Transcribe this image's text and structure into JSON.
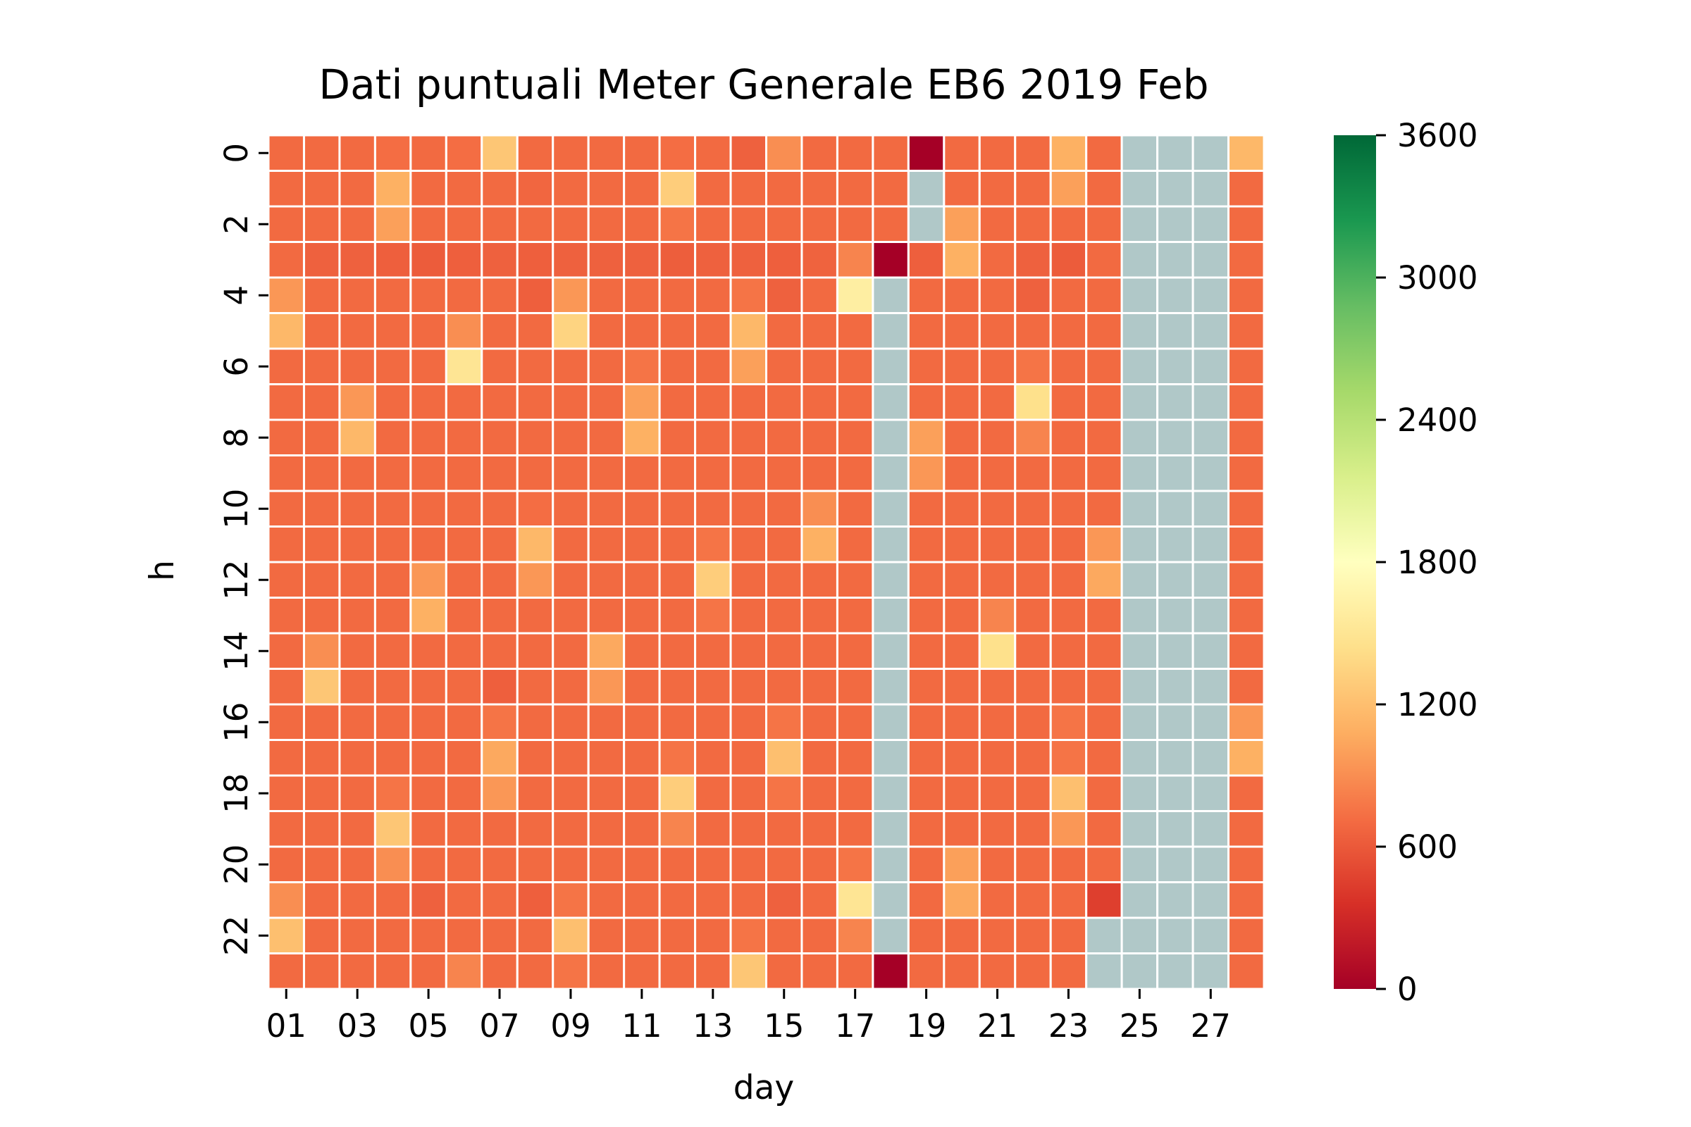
{
  "chart_data": {
    "type": "heatmap",
    "title": "Dati puntuali Meter Generale EB6 2019 Feb",
    "xlabel": "day",
    "ylabel": "h",
    "x": [
      "01",
      "02",
      "03",
      "04",
      "05",
      "06",
      "07",
      "08",
      "09",
      "10",
      "11",
      "12",
      "13",
      "14",
      "15",
      "16",
      "17",
      "18",
      "19",
      "20",
      "21",
      "22",
      "23",
      "24",
      "25",
      "26",
      "27",
      "28"
    ],
    "x_tick_labels": [
      "01",
      "03",
      "05",
      "07",
      "09",
      "11",
      "13",
      "15",
      "17",
      "19",
      "21",
      "23",
      "25",
      "27"
    ],
    "y": [
      0,
      1,
      2,
      3,
      4,
      5,
      6,
      7,
      8,
      9,
      10,
      11,
      12,
      13,
      14,
      15,
      16,
      17,
      18,
      19,
      20,
      21,
      22,
      23
    ],
    "y_tick_labels": [
      "0",
      "2",
      "4",
      "6",
      "8",
      "10",
      "12",
      "14",
      "16",
      "18",
      "20",
      "22"
    ],
    "colorbar": {
      "min": 0,
      "max": 3600,
      "ticks": [
        "0",
        "600",
        "1200",
        "1800",
        "2400",
        "3000",
        "3600"
      ],
      "colormap": "RdYlGn"
    },
    "missing_color": "#b0c8c8",
    "grid_color": "#ffffff",
    "values": [
      [
        700,
        700,
        700,
        720,
        700,
        720,
        1250,
        700,
        700,
        700,
        700,
        720,
        700,
        650,
        900,
        700,
        700,
        700,
        0,
        700,
        700,
        700,
        1100,
        700,
        null,
        null,
        null,
        1150
      ],
      [
        700,
        700,
        700,
        1100,
        700,
        700,
        700,
        680,
        700,
        700,
        700,
        1300,
        700,
        700,
        700,
        700,
        700,
        700,
        null,
        700,
        700,
        700,
        1000,
        700,
        null,
        null,
        null,
        700
      ],
      [
        700,
        700,
        700,
        1000,
        700,
        700,
        700,
        700,
        700,
        700,
        700,
        760,
        700,
        700,
        700,
        700,
        700,
        700,
        null,
        1000,
        700,
        700,
        700,
        700,
        null,
        null,
        null,
        700
      ],
      [
        700,
        650,
        650,
        640,
        620,
        640,
        650,
        640,
        650,
        650,
        650,
        630,
        650,
        650,
        640,
        660,
        850,
        0,
        640,
        1100,
        700,
        650,
        620,
        700,
        null,
        null,
        null,
        700
      ],
      [
        950,
        700,
        700,
        700,
        700,
        700,
        700,
        640,
        950,
        700,
        700,
        700,
        700,
        760,
        650,
        700,
        1600,
        null,
        700,
        700,
        700,
        650,
        700,
        700,
        null,
        null,
        null,
        700
      ],
      [
        1150,
        700,
        700,
        700,
        700,
        900,
        700,
        700,
        1350,
        700,
        700,
        700,
        700,
        1150,
        700,
        700,
        700,
        null,
        700,
        700,
        700,
        700,
        700,
        700,
        null,
        null,
        null,
        700
      ],
      [
        700,
        700,
        700,
        700,
        700,
        1500,
        700,
        700,
        700,
        700,
        760,
        700,
        700,
        1000,
        700,
        700,
        700,
        null,
        700,
        700,
        700,
        760,
        700,
        700,
        null,
        null,
        null,
        700
      ],
      [
        700,
        700,
        950,
        700,
        700,
        700,
        700,
        700,
        700,
        700,
        1000,
        700,
        700,
        700,
        700,
        700,
        700,
        null,
        700,
        700,
        700,
        1450,
        700,
        700,
        null,
        null,
        null,
        700
      ],
      [
        700,
        700,
        1150,
        700,
        700,
        700,
        700,
        700,
        700,
        700,
        1100,
        700,
        700,
        700,
        700,
        700,
        700,
        null,
        1000,
        700,
        700,
        850,
        700,
        700,
        null,
        null,
        null,
        700
      ],
      [
        700,
        700,
        700,
        700,
        700,
        700,
        700,
        700,
        700,
        700,
        700,
        700,
        700,
        700,
        700,
        700,
        700,
        null,
        950,
        700,
        700,
        700,
        700,
        700,
        null,
        null,
        null,
        700
      ],
      [
        700,
        700,
        700,
        700,
        700,
        700,
        700,
        720,
        700,
        700,
        700,
        700,
        700,
        700,
        700,
        900,
        700,
        null,
        700,
        700,
        700,
        700,
        700,
        700,
        null,
        null,
        null,
        700
      ],
      [
        700,
        700,
        700,
        700,
        700,
        700,
        700,
        1150,
        700,
        700,
        700,
        700,
        760,
        700,
        700,
        1100,
        700,
        null,
        700,
        700,
        700,
        700,
        700,
        950,
        null,
        null,
        null,
        700
      ],
      [
        700,
        700,
        700,
        700,
        950,
        700,
        700,
        950,
        700,
        700,
        700,
        700,
        1300,
        700,
        700,
        700,
        700,
        null,
        700,
        700,
        700,
        700,
        700,
        1050,
        null,
        null,
        null,
        700
      ],
      [
        700,
        700,
        700,
        700,
        1100,
        700,
        700,
        700,
        700,
        700,
        700,
        700,
        760,
        700,
        700,
        700,
        700,
        null,
        700,
        700,
        850,
        700,
        700,
        700,
        null,
        null,
        null,
        700
      ],
      [
        700,
        900,
        700,
        700,
        700,
        700,
        700,
        700,
        700,
        1050,
        700,
        700,
        700,
        700,
        700,
        700,
        700,
        null,
        700,
        700,
        1450,
        700,
        700,
        700,
        null,
        null,
        null,
        700
      ],
      [
        700,
        1250,
        700,
        700,
        700,
        700,
        640,
        700,
        700,
        950,
        700,
        700,
        700,
        700,
        700,
        700,
        700,
        null,
        700,
        700,
        700,
        700,
        700,
        700,
        null,
        null,
        null,
        700
      ],
      [
        700,
        700,
        700,
        700,
        700,
        700,
        760,
        700,
        700,
        700,
        700,
        700,
        700,
        700,
        760,
        700,
        700,
        null,
        700,
        700,
        700,
        700,
        760,
        700,
        null,
        null,
        null,
        950
      ],
      [
        700,
        700,
        700,
        700,
        700,
        700,
        1050,
        700,
        700,
        700,
        700,
        760,
        700,
        700,
        1200,
        700,
        700,
        null,
        700,
        700,
        700,
        700,
        760,
        700,
        null,
        null,
        null,
        1100
      ],
      [
        700,
        700,
        700,
        760,
        700,
        700,
        950,
        700,
        700,
        700,
        700,
        1300,
        700,
        700,
        760,
        700,
        700,
        null,
        700,
        700,
        700,
        700,
        1200,
        700,
        null,
        null,
        null,
        700
      ],
      [
        700,
        700,
        700,
        1250,
        700,
        700,
        700,
        700,
        700,
        700,
        700,
        850,
        700,
        700,
        700,
        700,
        700,
        null,
        700,
        700,
        700,
        700,
        950,
        700,
        null,
        null,
        null,
        700
      ],
      [
        700,
        700,
        700,
        900,
        700,
        700,
        700,
        700,
        700,
        700,
        700,
        700,
        700,
        700,
        700,
        700,
        760,
        null,
        700,
        1000,
        700,
        700,
        700,
        700,
        null,
        null,
        null,
        700
      ],
      [
        900,
        700,
        700,
        700,
        650,
        700,
        700,
        640,
        760,
        700,
        700,
        700,
        700,
        700,
        650,
        700,
        1500,
        null,
        700,
        1050,
        700,
        700,
        700,
        450,
        null,
        null,
        null,
        700
      ],
      [
        1200,
        700,
        700,
        700,
        700,
        700,
        700,
        700,
        1200,
        700,
        700,
        700,
        700,
        760,
        700,
        700,
        850,
        null,
        700,
        700,
        700,
        700,
        700,
        null,
        null,
        null,
        null,
        700
      ],
      [
        700,
        700,
        700,
        700,
        700,
        850,
        700,
        700,
        760,
        700,
        700,
        700,
        700,
        1250,
        700,
        700,
        700,
        0,
        700,
        700,
        700,
        700,
        700,
        null,
        null,
        null,
        null,
        700
      ]
    ]
  }
}
